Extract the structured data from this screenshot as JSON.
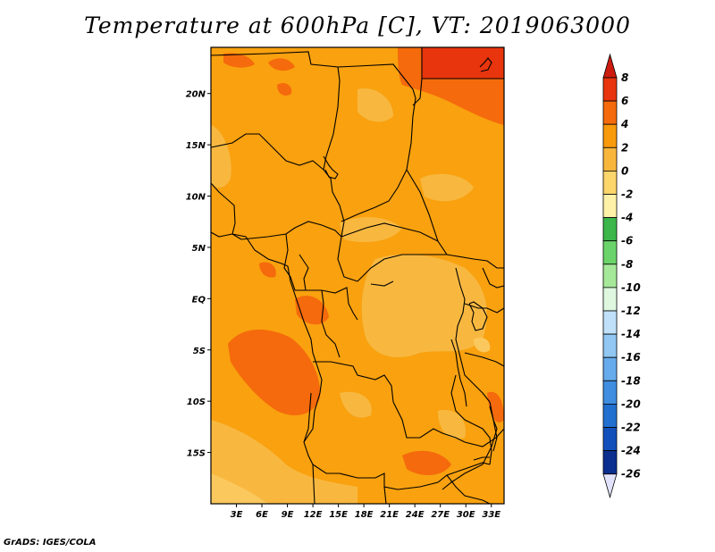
{
  "title": "Temperature at 600hPa [C], VT: 2019063000",
  "footer": "GrADS: IGES/COLA",
  "map": {
    "lat_ticks": [
      {
        "lat": 20,
        "label": "20N"
      },
      {
        "lat": 15,
        "label": "15N"
      },
      {
        "lat": 10,
        "label": "10N"
      },
      {
        "lat": 5,
        "label": "5N"
      },
      {
        "lat": 0,
        "label": "EQ"
      },
      {
        "lat": -5,
        "label": "5S"
      },
      {
        "lat": -10,
        "label": "10S"
      },
      {
        "lat": -15,
        "label": "15S"
      }
    ],
    "lon_ticks": [
      {
        "lon": 3,
        "label": "3E"
      },
      {
        "lon": 6,
        "label": "6E"
      },
      {
        "lon": 9,
        "label": "9E"
      },
      {
        "lon": 12,
        "label": "12E"
      },
      {
        "lon": 15,
        "label": "15E"
      },
      {
        "lon": 18,
        "label": "18E"
      },
      {
        "lon": 21,
        "label": "21E"
      },
      {
        "lon": 24,
        "label": "24E"
      },
      {
        "lon": 27,
        "label": "27E"
      },
      {
        "lon": 30,
        "label": "30E"
      },
      {
        "lon": 33,
        "label": "33E"
      }
    ],
    "lon_range": [
      0,
      34.5
    ],
    "lat_range": [
      -20,
      24.5
    ]
  },
  "colorbar": {
    "levels": [
      "8",
      "6",
      "4",
      "2",
      "0",
      "-2",
      "-4",
      "-6",
      "-8",
      "-10",
      "-12",
      "-14",
      "-16",
      "-18",
      "-20",
      "-22",
      "-24",
      "-26"
    ],
    "colors": [
      "#e8350d",
      "#f56a0c",
      "#f99a0c",
      "#f8b73c",
      "#fcd56b",
      "#fff2a8",
      "#3ab64a",
      "#6ad46a",
      "#a6e89a",
      "#dff6df",
      "#bfe0f8",
      "#91c7f2",
      "#66abec",
      "#3f8ee0",
      "#2170d0",
      "#1150bb",
      "#0a2f8f"
    ],
    "top_arrow_color": "#cc1c10",
    "bottom_arrow_color": "#e2e2fb"
  }
}
